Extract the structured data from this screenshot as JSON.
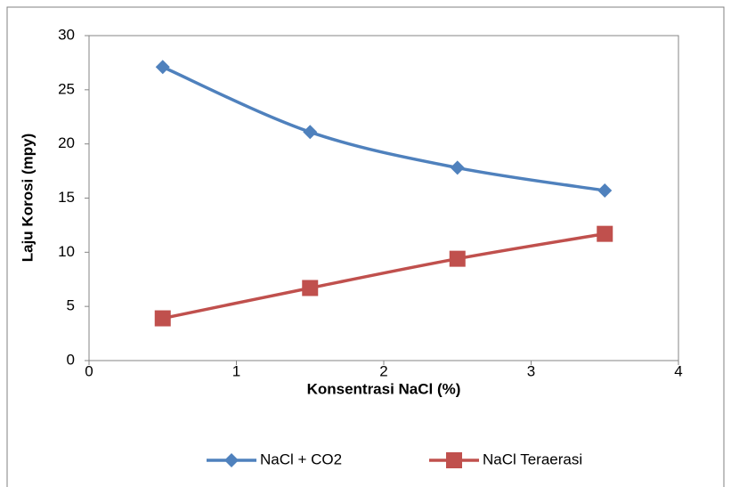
{
  "chart_data": {
    "type": "line",
    "smooth": true,
    "x_label": "Konsentrasi NaCl (%)",
    "y_label": "Laju Korosi (mpy)",
    "x": [
      0.5,
      1.5,
      2.5,
      3.5
    ],
    "series": [
      {
        "name": "NaCl + CO2",
        "color": "#4f81bd",
        "marker": "diamond",
        "values": [
          27.1,
          21.1,
          17.8,
          15.7
        ]
      },
      {
        "name": "NaCl Teraerasi",
        "color": "#c0504d",
        "marker": "square",
        "values": [
          3.9,
          6.7,
          9.4,
          11.7
        ]
      }
    ],
    "xlim": [
      0,
      4
    ],
    "xticks": [
      0,
      1,
      2,
      3,
      4
    ],
    "ylim": [
      0,
      30
    ],
    "yticks": [
      0,
      5,
      10,
      15,
      20,
      25,
      30
    ],
    "legend": "bottom"
  }
}
